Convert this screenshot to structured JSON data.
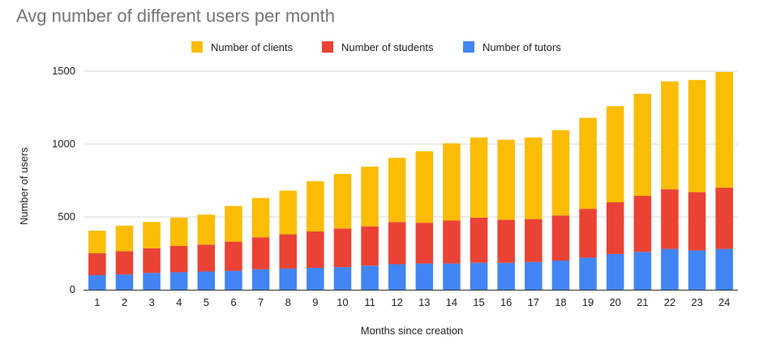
{
  "chart_data": {
    "type": "bar",
    "stacked": true,
    "title": "Avg number of different users per month",
    "xlabel": "Months since creation",
    "ylabel": "Number of users",
    "ylim": [
      0,
      1500
    ],
    "yticks": [
      0,
      500,
      1000,
      1500
    ],
    "grid": true,
    "legend_position": "top",
    "categories": [
      "1",
      "2",
      "3",
      "4",
      "5",
      "6",
      "7",
      "8",
      "9",
      "10",
      "11",
      "12",
      "13",
      "14",
      "15",
      "16",
      "17",
      "18",
      "19",
      "20",
      "21",
      "22",
      "23",
      "24"
    ],
    "series": [
      {
        "name": "Number of tutors",
        "color": "#4285f4",
        "values": [
          100,
          105,
          115,
          120,
          125,
          130,
          140,
          145,
          150,
          155,
          165,
          175,
          180,
          180,
          185,
          185,
          190,
          200,
          220,
          245,
          260,
          280,
          270,
          280
        ]
      },
      {
        "name": "Number of students",
        "color": "#ea4335",
        "values": [
          150,
          160,
          170,
          180,
          185,
          200,
          220,
          235,
          250,
          265,
          270,
          290,
          280,
          295,
          310,
          295,
          295,
          310,
          335,
          355,
          385,
          410,
          400,
          420
        ]
      },
      {
        "name": "Number of clients",
        "color": "#fbbc04",
        "values": [
          155,
          175,
          180,
          195,
          205,
          245,
          270,
          300,
          345,
          375,
          410,
          440,
          490,
          530,
          550,
          550,
          560,
          585,
          625,
          660,
          700,
          740,
          770,
          795
        ]
      }
    ],
    "legend_order": [
      "Number of clients",
      "Number of students",
      "Number of tutors"
    ]
  }
}
